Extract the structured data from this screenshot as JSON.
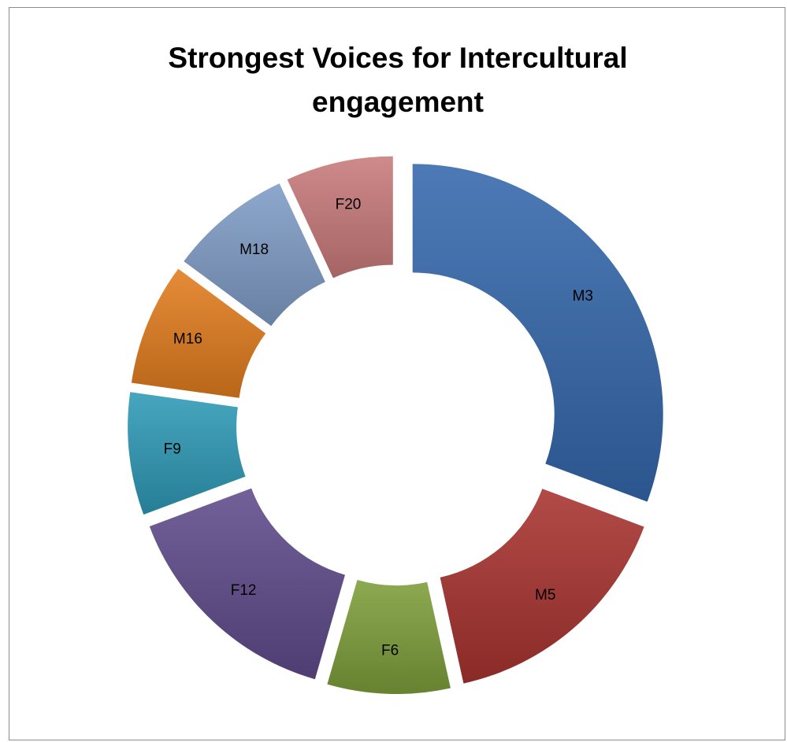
{
  "chart_data": {
    "type": "pie",
    "variant": "exploded doughnut",
    "title_lines": [
      "Strongest Voices for Intercultural",
      "engagement"
    ],
    "legend": "none",
    "categories": [
      "M3",
      "M5",
      "F6",
      "F12",
      "F9",
      "M16",
      "M18",
      "F20"
    ],
    "values": [
      31,
      16,
      8,
      15,
      8,
      8,
      8,
      7
    ],
    "colors": [
      "#3568AC",
      "#A8332F",
      "#7D9E3A",
      "#5F4A8B",
      "#2E9AB6",
      "#E17C1E",
      "#7F9CC6",
      "#C97A7A"
    ]
  }
}
